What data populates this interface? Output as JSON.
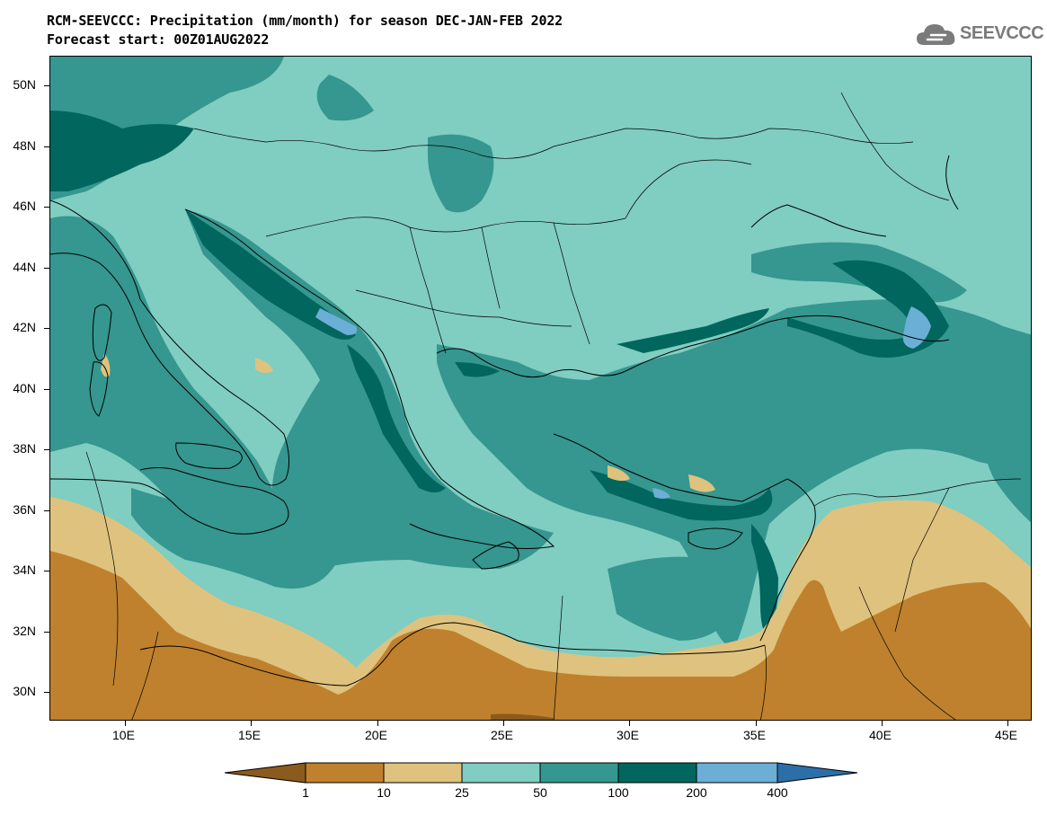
{
  "title": {
    "line1": "RCM-SEEVCCC: Precipitation (mm/month) for season DEC-JAN-FEB 2022",
    "line2": "Forecast start: 00Z01AUG2022"
  },
  "logo": {
    "text": "SEEVCCC",
    "icon": "cloud-icon"
  },
  "axes": {
    "lat_labels": [
      "50N",
      "48N",
      "46N",
      "44N",
      "42N",
      "40N",
      "38N",
      "36N",
      "34N",
      "32N",
      "30N"
    ],
    "lon_labels": [
      "10E",
      "15E",
      "20E",
      "25E",
      "30E",
      "35E",
      "40E",
      "45E"
    ]
  },
  "colors": {
    "c_lt1": "#8b5a1e",
    "c_1_10": "#bf812d",
    "c_10_25": "#dfc27d",
    "c_25_50": "#80cdc1",
    "c_50_100": "#35978f",
    "c_100_200": "#01665e",
    "c_200_400": "#6baed6",
    "c_gt400": "#2c6fa8"
  },
  "legend": {
    "labels": [
      "1",
      "10",
      "25",
      "50",
      "100",
      "200",
      "400"
    ]
  }
}
